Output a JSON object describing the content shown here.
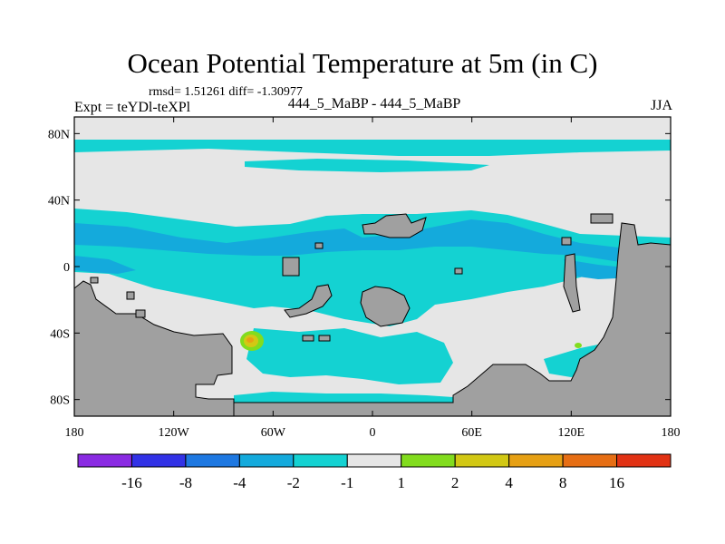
{
  "chart_data": {
    "type": "heatmap",
    "title": "Ocean Potential Temperature at 5m (in C)",
    "stats_text": "rmsd= 1.51261 diff= -1.30977",
    "left_label": "Expt = teYDl-teXPl",
    "center_label": "444_5_MaBP - 444_5_MaBP",
    "right_label": "JJA",
    "xaxis": {
      "range": [
        -180,
        180
      ],
      "ticks": [
        -180,
        -120,
        -60,
        0,
        60,
        120,
        180
      ],
      "tick_labels": [
        "180",
        "120W",
        "60W",
        "0",
        "60E",
        "120E",
        "180"
      ]
    },
    "yaxis": {
      "range": [
        -90,
        90
      ],
      "ticks": [
        80,
        40,
        0,
        -40,
        -80
      ],
      "tick_labels": [
        "80N",
        "40N",
        "0",
        "40S",
        "80S"
      ]
    },
    "colorbar": {
      "boundaries": [
        "-16",
        "-8",
        "-4",
        "-2",
        "-1",
        "1",
        "2",
        "4",
        "8",
        "16"
      ],
      "colors": [
        "#8a2be2",
        "#3232e6",
        "#1e78e1",
        "#14aadc",
        "#14d2d2",
        "#e6e6e6",
        "#82dc1e",
        "#d2c814",
        "#e6a014",
        "#e66e14",
        "#e13214"
      ]
    },
    "land_color": "#a0a0a0",
    "dominant_field": "-1 to 1 (neutral)"
  }
}
